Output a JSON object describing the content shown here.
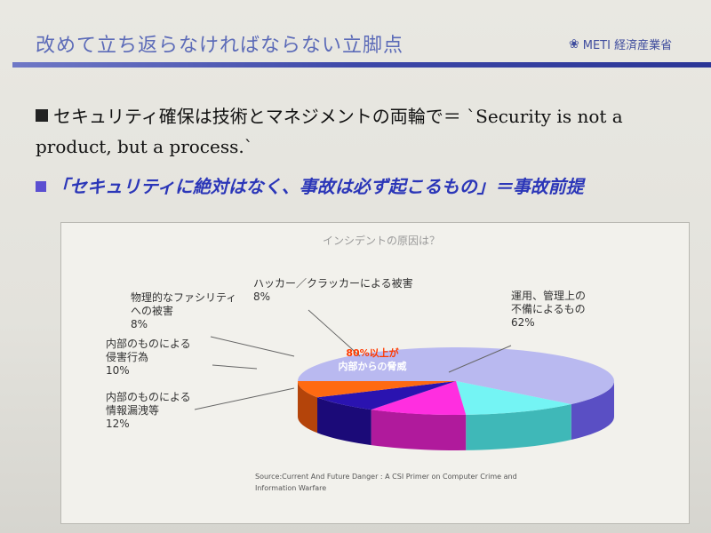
{
  "slide": {
    "title": "改めて立ち返らなければならない立脚点",
    "logo_text": "METI 経済産業省",
    "bullet1": "セキュリティ確保は技術とマネジメントの両輪で＝ `Security is not a product, but a process.`",
    "bullet2": "「セキュリティに絶対はなく、事故は必ず起こるもの」＝事故前提"
  },
  "colors": {
    "title": "#5c6bb8",
    "accent_bar": "#3c47a8",
    "bullet2": "#2b36b8"
  },
  "chart_data": {
    "type": "pie",
    "style": "3d",
    "title": "インシデントの原因は？",
    "slices": [
      {
        "label": "運用、管理上の不備によるもの",
        "value": 62,
        "color": "#b9b9f0",
        "side": "#5a4fc4",
        "label_lines": [
          "運用、管理上の",
          "不備によるもの",
          "62%"
        ]
      },
      {
        "label": "内部のものによる情報漏洩等",
        "value": 12,
        "color": "#74f4f4",
        "side": "#3fb8b8",
        "label_lines": [
          "内部のものによる",
          "情報漏洩等",
          "12%"
        ]
      },
      {
        "label": "内部のものによる侵害行為",
        "value": 10,
        "color": "#ff2ee0",
        "side": "#b01a9c",
        "label_lines": [
          "内部のものによる",
          "侵害行為",
          "10%"
        ]
      },
      {
        "label": "物理的なファシリティへの被害",
        "value": 8,
        "color": "#2a13b0",
        "side": "#1b0a78",
        "label_lines": [
          "物理的なファシリティ",
          "への被害",
          "8%"
        ]
      },
      {
        "label": "ハッカー／クラッカーによる被害",
        "value": 8,
        "color": "#ff6a12",
        "side": "#b4440a",
        "label_lines": [
          "ハッカー／クラッカーによる被害",
          "8%"
        ]
      }
    ],
    "annotation": [
      "80%以上が",
      "内部からの脅威"
    ],
    "source": [
      "Source:Current And Future Danger : A CSI Primer on Computer Crime and",
      "Information Warfare"
    ],
    "legend": "none"
  }
}
